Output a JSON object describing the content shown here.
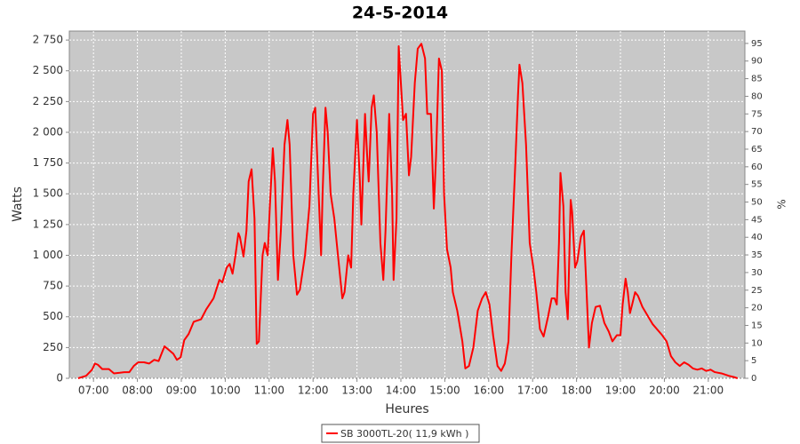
{
  "chart_data": {
    "type": "line",
    "title": "24-5-2014",
    "x_label": "Heures",
    "y_label": "Watts",
    "y2_label": "%",
    "x": [
      "06:39",
      "06:50",
      "06:58",
      "07:02",
      "07:06",
      "07:12",
      "07:21",
      "07:28",
      "07:36",
      "07:42",
      "07:49",
      "07:55",
      "08:01",
      "08:09",
      "08:16",
      "08:23",
      "08:29",
      "08:33",
      "08:37",
      "08:43",
      "08:49",
      "08:54",
      "08:59",
      "09:04",
      "09:10",
      "09:17",
      "09:27",
      "09:34",
      "09:44",
      "09:52",
      "09:56",
      "10:02",
      "10:06",
      "10:10",
      "10:14",
      "10:18",
      "10:20",
      "10:25",
      "10:29",
      "10:32",
      "10:36",
      "10:40",
      "10:43",
      "10:46",
      "10:51",
      "10:54",
      "10:58",
      "11:01",
      "11:05",
      "11:08",
      "11:12",
      "11:16",
      "11:21",
      "11:25",
      "11:28",
      "11:33",
      "11:38",
      "11:42",
      "11:49",
      "11:55",
      "12:00",
      "12:03",
      "12:07",
      "12:11",
      "12:13",
      "12:17",
      "12:20",
      "12:24",
      "12:29",
      "12:34",
      "12:40",
      "12:43",
      "12:48",
      "12:52",
      "12:55",
      "13:00",
      "13:04",
      "13:06",
      "13:11",
      "13:14",
      "13:16",
      "13:20",
      "13:23",
      "13:27",
      "13:32",
      "13:36",
      "13:39",
      "13:44",
      "13:48",
      "13:50",
      "13:54",
      "13:57",
      "14:00",
      "14:03",
      "14:07",
      "14:11",
      "14:14",
      "14:19",
      "14:23",
      "14:28",
      "14:33",
      "14:36",
      "14:41",
      "14:45",
      "14:48",
      "14:52",
      "14:56",
      "14:59",
      "15:03",
      "15:08",
      "15:11",
      "15:17",
      "15:24",
      "15:28",
      "15:33",
      "15:39",
      "15:45",
      "15:51",
      "15:56",
      "16:01",
      "16:06",
      "16:12",
      "16:17",
      "16:22",
      "16:27",
      "16:31",
      "16:36",
      "16:40",
      "16:42",
      "16:46",
      "16:51",
      "16:56",
      "17:01",
      "17:05",
      "17:10",
      "17:15",
      "17:21",
      "17:26",
      "17:30",
      "17:33",
      "17:36",
      "17:38",
      "17:42",
      "17:45",
      "17:48",
      "17:52",
      "17:54",
      "17:58",
      "18:01",
      "18:06",
      "18:10",
      "18:13",
      "18:17",
      "18:21",
      "18:26",
      "18:32",
      "18:38",
      "18:44",
      "18:49",
      "18:55",
      "19:00",
      "19:03",
      "19:07",
      "19:10",
      "19:13",
      "19:16",
      "19:20",
      "19:24",
      "19:30",
      "19:38",
      "19:44",
      "19:57",
      "20:03",
      "20:09",
      "20:15",
      "20:21",
      "20:27",
      "20:33",
      "20:39",
      "20:45",
      "20:51",
      "20:57",
      "21:03",
      "21:09",
      "21:18",
      "21:28",
      "21:35",
      "21:40"
    ],
    "series": [
      {
        "name": "SB 3000TL-20( 11,9 kWh )",
        "color": "#ff0000",
        "values": [
          0,
          20,
          70,
          120,
          110,
          75,
          75,
          40,
          45,
          50,
          50,
          100,
          130,
          130,
          120,
          150,
          140,
          200,
          260,
          230,
          200,
          150,
          170,
          310,
          360,
          460,
          480,
          560,
          650,
          800,
          780,
          900,
          930,
          850,
          1000,
          1180,
          1150,
          990,
          1200,
          1600,
          1700,
          1300,
          280,
          300,
          1000,
          1100,
          1000,
          1400,
          1870,
          1600,
          800,
          1200,
          1900,
          2100,
          1900,
          1000,
          680,
          720,
          1000,
          1400,
          2150,
          2200,
          1600,
          1000,
          1500,
          2200,
          2000,
          1500,
          1300,
          1000,
          650,
          700,
          1000,
          900,
          1500,
          2100,
          1600,
          1250,
          2150,
          1800,
          1600,
          2200,
          2300,
          2000,
          1100,
          800,
          1200,
          2150,
          1500,
          800,
          1300,
          2700,
          2400,
          2100,
          2150,
          1650,
          1800,
          2400,
          2680,
          2720,
          2600,
          2150,
          2150,
          1380,
          1800,
          2600,
          2500,
          1500,
          1050,
          900,
          700,
          550,
          300,
          80,
          100,
          250,
          550,
          650,
          700,
          600,
          350,
          100,
          60,
          120,
          300,
          1000,
          1700,
          2300,
          2550,
          2400,
          1900,
          1100,
          900,
          700,
          400,
          340,
          500,
          650,
          650,
          600,
          1100,
          1670,
          1400,
          700,
          480,
          1450,
          1350,
          900,
          950,
          1150,
          1200,
          800,
          250,
          450,
          580,
          590,
          450,
          380,
          300,
          350,
          350,
          600,
          810,
          700,
          530,
          600,
          700,
          670,
          580,
          500,
          440,
          350,
          300,
          180,
          130,
          100,
          130,
          110,
          80,
          70,
          80,
          60,
          70,
          50,
          40,
          20,
          10,
          0
        ]
      }
    ],
    "xlim": [
      "06:27",
      "21:50"
    ],
    "xticks": [
      "07:00",
      "08:00",
      "09:00",
      "10:00",
      "11:00",
      "12:00",
      "13:00",
      "14:00",
      "15:00",
      "16:00",
      "17:00",
      "18:00",
      "19:00",
      "20:00",
      "21:00"
    ],
    "ylim": [
      0,
      2823
    ],
    "yticks": [
      0,
      250,
      500,
      750,
      {
        "value": 1000,
        "label": "1 000"
      },
      {
        "value": 1250,
        "label": "1 250"
      },
      {
        "value": 1500,
        "label": "1 500"
      },
      {
        "value": 1750,
        "label": "1 750"
      },
      {
        "value": 2000,
        "label": "2 000"
      },
      {
        "value": 2250,
        "label": "2 250"
      },
      {
        "value": 2500,
        "label": "2 500"
      },
      {
        "value": 2750,
        "label": "2 750"
      }
    ],
    "y2lim": [
      0,
      98.5
    ],
    "y2ticks": [
      0,
      5,
      10,
      15,
      20,
      25,
      30,
      35,
      40,
      45,
      50,
      55,
      60,
      65,
      70,
      75,
      80,
      85,
      90,
      95
    ],
    "grid": true
  }
}
